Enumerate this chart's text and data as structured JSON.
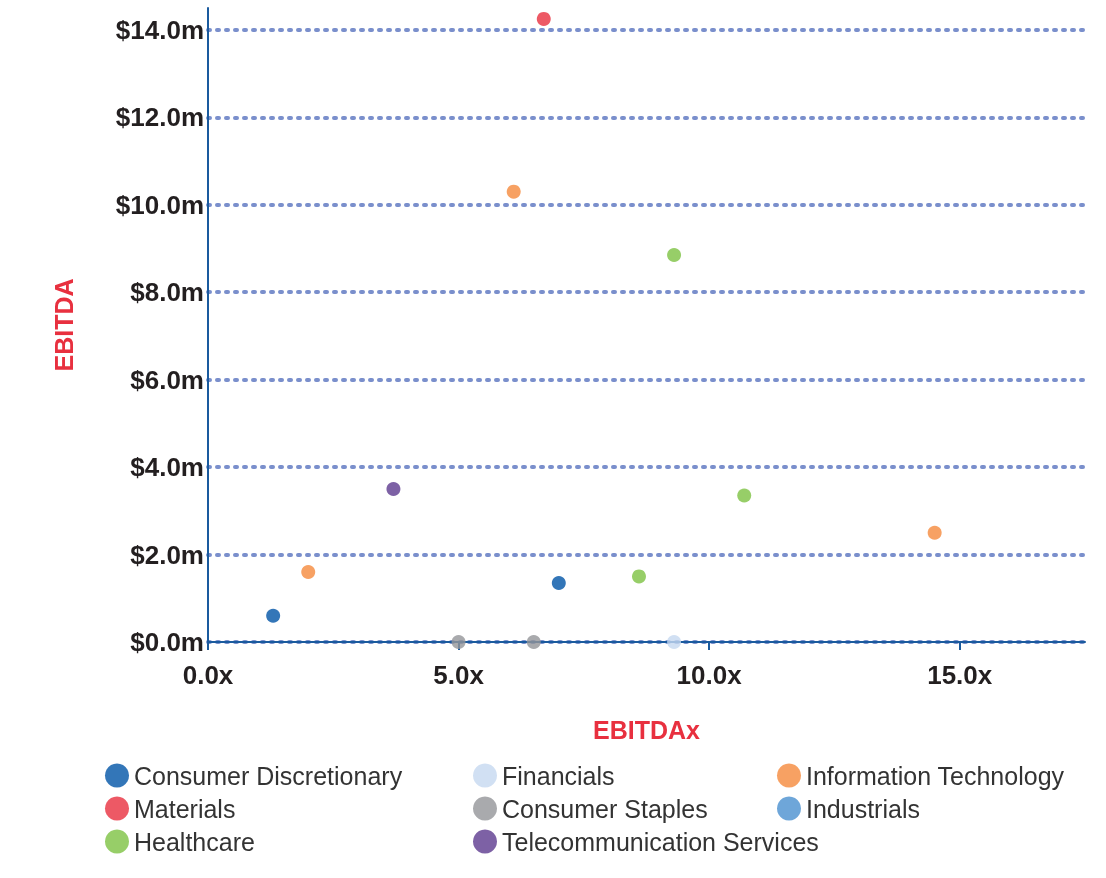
{
  "chart_data": {
    "type": "scatter",
    "xlabel": "EBITDAx",
    "ylabel": "EBITDA",
    "xlim": [
      0,
      17.5
    ],
    "xticks": [
      {
        "value": 0,
        "label": "0.0x"
      },
      {
        "value": 5,
        "label": "5.0x"
      },
      {
        "value": 10,
        "label": "10.0x"
      },
      {
        "value": 15,
        "label": "15.0x"
      }
    ],
    "ylim": [
      0,
      14.5
    ],
    "yticks": [
      {
        "value": 0,
        "label": "$0.0m"
      },
      {
        "value": 2,
        "label": "$2.0m"
      },
      {
        "value": 4,
        "label": "$4.0m"
      },
      {
        "value": 6,
        "label": "$6.0m"
      },
      {
        "value": 8,
        "label": "$8.0m"
      },
      {
        "value": 10,
        "label": "$10.0m"
      },
      {
        "value": 12,
        "label": "$12.0m"
      },
      {
        "value": 14,
        "label": "$14.0m"
      }
    ],
    "grid": "y",
    "legend": "bottom",
    "marker": "circle",
    "series": [
      {
        "name": "Consumer Discretionary",
        "color": "#0054a6",
        "x": [
          1.3,
          7.0
        ],
        "values": [
          0.6,
          1.35
        ]
      },
      {
        "name": "Financials",
        "color": "#c5d8f0",
        "x": [
          9.3
        ],
        "values": [
          0
        ]
      },
      {
        "name": "Information Technology",
        "color": "#f58a3c",
        "x": [
          2.0,
          6.1,
          14.5
        ],
        "values": [
          1.6,
          10.3,
          2.5
        ]
      },
      {
        "name": "Materials",
        "color": "#e8303f",
        "x": [
          6.7
        ],
        "values": [
          14.25
        ]
      },
      {
        "name": "Consumer Staples",
        "color": "#939598",
        "x": [
          5.0,
          6.5
        ],
        "values": [
          0,
          0
        ]
      },
      {
        "name": "Industrials",
        "color": "#4a90d0"
      },
      {
        "name": "Healthcare",
        "color": "#7dc242",
        "x": [
          8.6,
          9.3,
          10.7
        ],
        "values": [
          1.5,
          8.85,
          3.35
        ]
      },
      {
        "name": "Telecommunication Services",
        "color": "#5c3a8e",
        "x": [
          3.7
        ],
        "values": [
          3.5
        ]
      }
    ]
  }
}
